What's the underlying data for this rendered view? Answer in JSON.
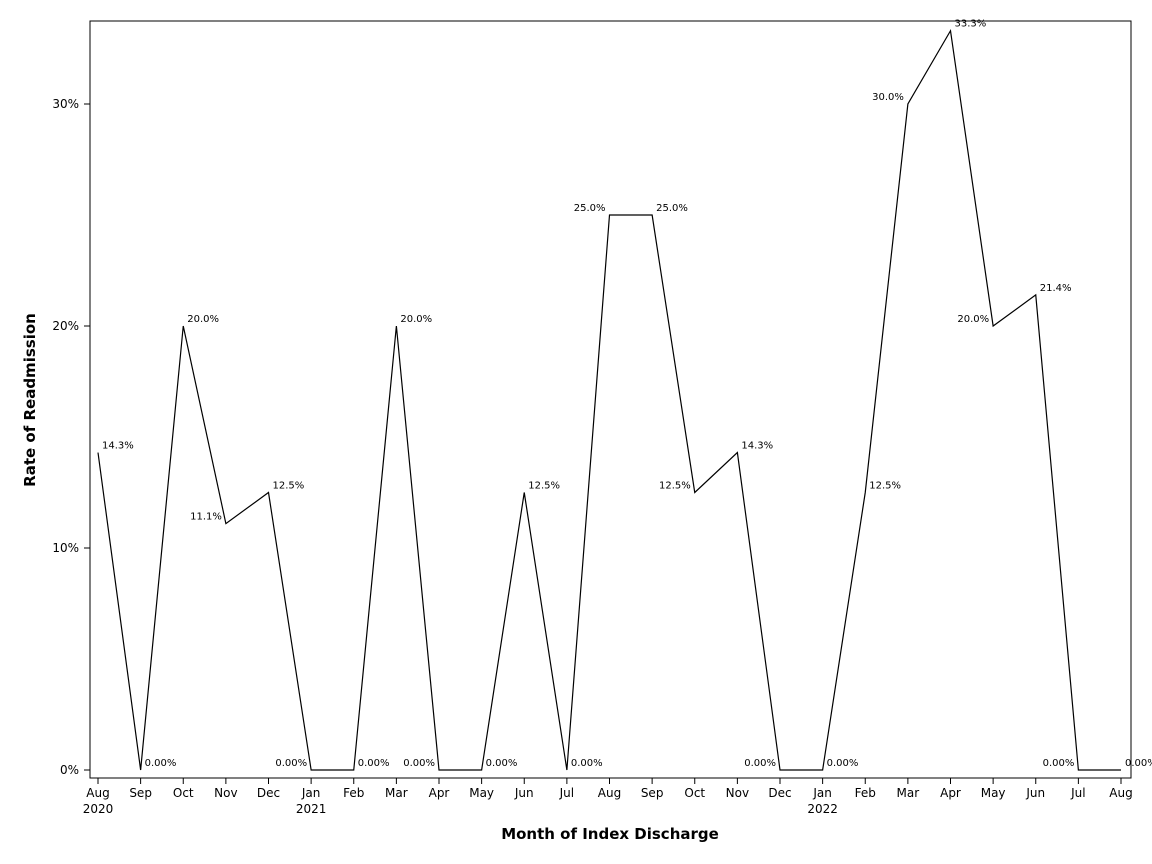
{
  "chart_data": {
    "type": "line",
    "title": "",
    "xlabel": "Month of Index Discharge",
    "ylabel": "Rate of Readmission",
    "ylim": [
      0,
      0.333
    ],
    "yticks": [
      {
        "value": 0.0,
        "label": "0%"
      },
      {
        "value": 0.1,
        "label": "10%"
      },
      {
        "value": 0.2,
        "label": "20%"
      },
      {
        "value": 0.3,
        "label": "30%"
      }
    ],
    "grid": false,
    "legend": "none",
    "line_color": "#000000",
    "categories": [
      {
        "month": "Aug",
        "year": "2020"
      },
      {
        "month": "Sep",
        "year": ""
      },
      {
        "month": "Oct",
        "year": ""
      },
      {
        "month": "Nov",
        "year": ""
      },
      {
        "month": "Dec",
        "year": ""
      },
      {
        "month": "Jan",
        "year": "2021"
      },
      {
        "month": "Feb",
        "year": ""
      },
      {
        "month": "Mar",
        "year": ""
      },
      {
        "month": "Apr",
        "year": ""
      },
      {
        "month": "May",
        "year": ""
      },
      {
        "month": "Jun",
        "year": ""
      },
      {
        "month": "Jul",
        "year": ""
      },
      {
        "month": "Aug",
        "year": ""
      },
      {
        "month": "Sep",
        "year": ""
      },
      {
        "month": "Oct",
        "year": ""
      },
      {
        "month": "Nov",
        "year": ""
      },
      {
        "month": "Dec",
        "year": ""
      },
      {
        "month": "Jan",
        "year": "2022"
      },
      {
        "month": "Feb",
        "year": ""
      },
      {
        "month": "Mar",
        "year": ""
      },
      {
        "month": "Apr",
        "year": ""
      },
      {
        "month": "May",
        "year": ""
      },
      {
        "month": "Jun",
        "year": ""
      },
      {
        "month": "Jul",
        "year": ""
      },
      {
        "month": "Aug",
        "year": ""
      }
    ],
    "series": [
      {
        "values": [
          0.143,
          0.0,
          0.2,
          0.111,
          0.125,
          0.0,
          0.0,
          0.2,
          0.0,
          0.0,
          0.125,
          0.0,
          0.25,
          0.25,
          0.125,
          0.143,
          0.0,
          0.0,
          0.125,
          0.3,
          0.333,
          0.2,
          0.214,
          0.0,
          0.0
        ],
        "labels": [
          "14.3%",
          "0.00%",
          "20.0%",
          "11.1%",
          "12.5%",
          "0.00%",
          "0.00%",
          "20.0%",
          "0.00%",
          "0.00%",
          "12.5%",
          "0.00%",
          "25.0%",
          "25.0%",
          "12.5%",
          "14.3%",
          "0.00%",
          "0.00%",
          "12.5%",
          "30.0%",
          "33.3%",
          "20.0%",
          "21.4%",
          "0.00%",
          "0.00%"
        ],
        "label_side": [
          "right",
          "right",
          "right",
          "left",
          "right",
          "left",
          "right",
          "right",
          "left",
          "right",
          "right",
          "right",
          "left",
          "right",
          "left",
          "right",
          "left",
          "right",
          "right",
          "left",
          "right",
          "left",
          "right",
          "left",
          "right"
        ]
      }
    ]
  }
}
